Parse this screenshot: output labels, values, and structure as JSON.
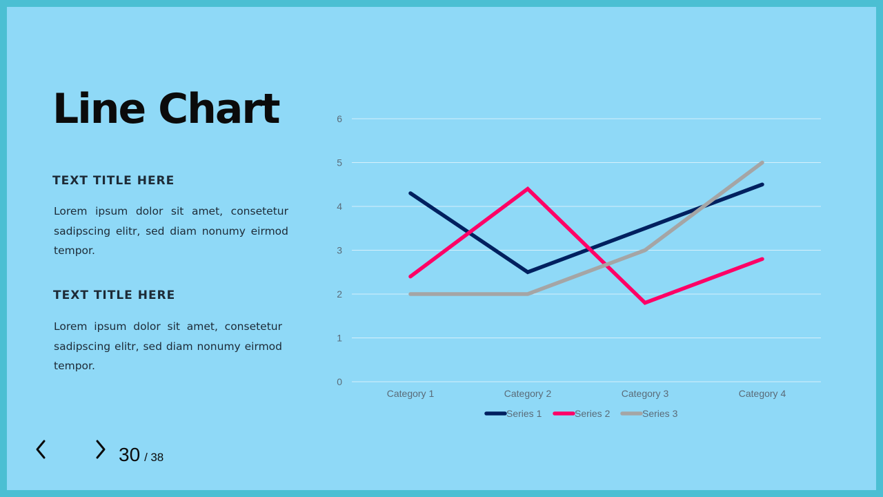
{
  "slide": {
    "title": "Line Chart",
    "sections": [
      {
        "heading": "TEXT TITLE HERE",
        "body": "Lorem ipsum dolor sit amet, consetetur sadipscing elitr, sed diam nonumy eirmod tempor."
      },
      {
        "heading": "TEXT TITLE HERE",
        "body": "Lorem ipsum dolor sit amet, consetetur sadipscing elitr, sed diam nonumy eirmod tempor."
      }
    ]
  },
  "pagination": {
    "current": "30",
    "separator": "/",
    "total": "38"
  },
  "icons": {
    "prev": "chevron-left-icon",
    "next": "chevron-right-icon"
  },
  "colors": {
    "background": "#8fd9f7",
    "frame": "#4bbfd3",
    "series1": "#00205f",
    "series2": "#ff0066",
    "series3": "#a5a5a5",
    "grid": "#d6f0fb"
  },
  "chart_data": {
    "type": "line",
    "title": "",
    "xlabel": "",
    "ylabel": "",
    "categories": [
      "Category 1",
      "Category 2",
      "Category 3",
      "Category 4"
    ],
    "ylim": [
      0,
      6
    ],
    "yticks": [
      "0",
      "1",
      "2",
      "3",
      "4",
      "5",
      "6"
    ],
    "grid": true,
    "legend": "bottom",
    "series": [
      {
        "name": "Series 1",
        "values": [
          4.3,
          2.5,
          3.5,
          4.5
        ],
        "color": "#00205f"
      },
      {
        "name": "Series 2",
        "values": [
          2.4,
          4.4,
          1.8,
          2.8
        ],
        "color": "#ff0066"
      },
      {
        "name": "Series 3",
        "values": [
          2,
          2,
          3,
          5
        ],
        "color": "#a5a5a5"
      }
    ]
  }
}
